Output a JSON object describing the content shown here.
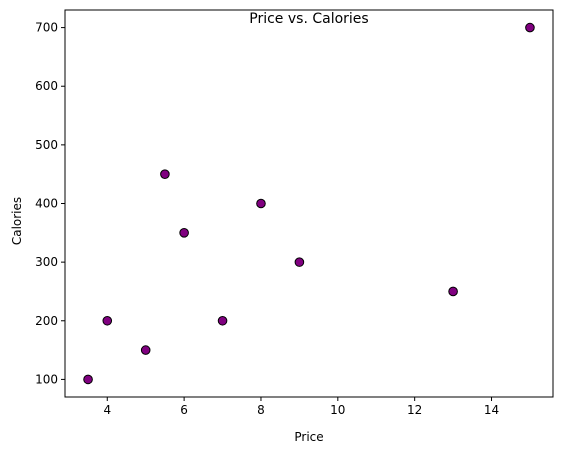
{
  "chart_data": {
    "type": "scatter",
    "title": "Price vs. Calories",
    "xlabel": "Price",
    "ylabel": "Calories",
    "xlim": [
      2.9,
      15.6
    ],
    "ylim": [
      70,
      730
    ],
    "xticks": [
      4,
      6,
      8,
      10,
      12,
      14
    ],
    "yticks": [
      100,
      200,
      300,
      400,
      500,
      600,
      700
    ],
    "grid": false,
    "marker_color": "#800080",
    "marker_edge_color": "#000000",
    "points": [
      {
        "x": 3.5,
        "y": 100
      },
      {
        "x": 4,
        "y": 200
      },
      {
        "x": 5,
        "y": 150
      },
      {
        "x": 5.5,
        "y": 450
      },
      {
        "x": 6,
        "y": 350
      },
      {
        "x": 7,
        "y": 200
      },
      {
        "x": 8,
        "y": 400
      },
      {
        "x": 9,
        "y": 300
      },
      {
        "x": 13,
        "y": 250
      },
      {
        "x": 15,
        "y": 700
      }
    ]
  }
}
